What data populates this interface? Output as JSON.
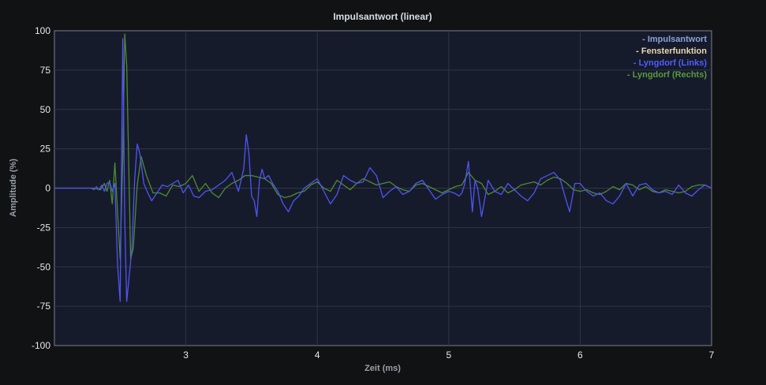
{
  "chart_data": {
    "type": "line",
    "title": "Impulsantwort (linear)",
    "xlabel": "Zeit (ms)",
    "ylabel": "Amplitude (%)",
    "xlim": [
      2.0,
      7.0
    ],
    "ylim": [
      -100,
      100
    ],
    "x_ticks": [
      3,
      4,
      5,
      6,
      7
    ],
    "x_tick_labels": [
      "3",
      "4",
      "5",
      "6",
      "7"
    ],
    "y_ticks": [
      100,
      75,
      50,
      25,
      0,
      -25,
      -50,
      -75,
      -100
    ],
    "y_tick_labels": [
      "100",
      "75",
      "50",
      "25",
      "0",
      "-25",
      "-50",
      "-75",
      "-100"
    ],
    "grid": true,
    "legend_position": "top-right",
    "legend": [
      {
        "label": "- Impulsantwort",
        "color": "#8aa2d6"
      },
      {
        "label": "- Fensterfunktion",
        "color": "#e8d7b0"
      },
      {
        "label": "- Lyngdorf (Links)",
        "color": "#4f5cff"
      },
      {
        "label": "- Lyngdorf (Rechts)",
        "color": "#5a9a3c"
      }
    ],
    "series": [
      {
        "name": "Lyngdorf (Links)",
        "color": "#4f55f0",
        "x": [
          2.0,
          2.2,
          2.25,
          2.28,
          2.3,
          2.32,
          2.34,
          2.36,
          2.38,
          2.4,
          2.42,
          2.44,
          2.46,
          2.48,
          2.5,
          2.52,
          2.535,
          2.55,
          2.57,
          2.59,
          2.61,
          2.63,
          2.65,
          2.68,
          2.71,
          2.74,
          2.78,
          2.82,
          2.86,
          2.9,
          2.94,
          2.98,
          3.02,
          3.06,
          3.1,
          3.15,
          3.2,
          3.25,
          3.3,
          3.35,
          3.4,
          3.44,
          3.46,
          3.48,
          3.5,
          3.52,
          3.54,
          3.56,
          3.58,
          3.6,
          3.63,
          3.66,
          3.7,
          3.74,
          3.78,
          3.82,
          3.86,
          3.9,
          3.95,
          4.0,
          4.05,
          4.1,
          4.15,
          4.2,
          4.25,
          4.3,
          4.35,
          4.4,
          4.45,
          4.5,
          4.55,
          4.6,
          4.65,
          4.7,
          4.75,
          4.8,
          4.85,
          4.9,
          4.95,
          5.0,
          5.04,
          5.08,
          5.1,
          5.12,
          5.15,
          5.18,
          5.2,
          5.22,
          5.25,
          5.3,
          5.35,
          5.4,
          5.45,
          5.5,
          5.55,
          5.6,
          5.65,
          5.7,
          5.75,
          5.8,
          5.85,
          5.88,
          5.92,
          5.96,
          6.0,
          6.05,
          6.1,
          6.15,
          6.2,
          6.25,
          6.3,
          6.35,
          6.4,
          6.45,
          6.5,
          6.55,
          6.6,
          6.65,
          6.7,
          6.75,
          6.8,
          6.85,
          6.9,
          6.95,
          7.0
        ],
        "values": [
          0,
          0,
          0,
          0,
          -1,
          1,
          -1,
          2,
          -2,
          3,
          4,
          -2,
          3,
          -48,
          -72,
          95,
          -20,
          -72,
          -55,
          -38,
          5,
          28,
          22,
          3,
          -3,
          -8,
          -3,
          2,
          1,
          3,
          5,
          -3,
          2,
          -5,
          -6,
          -2,
          -1,
          2,
          5,
          10,
          -2,
          12,
          34,
          22,
          -5,
          -8,
          -18,
          5,
          12,
          6,
          8,
          3,
          -2,
          -10,
          -15,
          -8,
          -5,
          0,
          3,
          6,
          -2,
          -10,
          -4,
          8,
          5,
          3,
          4,
          13,
          8,
          -6,
          -2,
          1,
          -4,
          -2,
          3,
          5,
          -1,
          -7,
          -4,
          -2,
          -3,
          -5,
          -3,
          2,
          17,
          -15,
          5,
          0,
          -18,
          5,
          -2,
          -4,
          3,
          -1,
          -5,
          -8,
          -3,
          6,
          8,
          10,
          5,
          -4,
          -15,
          3,
          3,
          -2,
          -5,
          -3,
          -8,
          -10,
          -5,
          3,
          -5,
          2,
          3,
          -1,
          -3,
          -2,
          -4,
          2,
          -3,
          -5,
          -1,
          2,
          0
        ]
      },
      {
        "name": "Lyngdorf (Rechts)",
        "color": "#4e8a33",
        "x": [
          2.0,
          2.2,
          2.3,
          2.35,
          2.38,
          2.4,
          2.42,
          2.44,
          2.46,
          2.48,
          2.5,
          2.52,
          2.535,
          2.55,
          2.58,
          2.6,
          2.63,
          2.66,
          2.7,
          2.75,
          2.8,
          2.85,
          2.9,
          2.95,
          3.0,
          3.05,
          3.1,
          3.15,
          3.2,
          3.25,
          3.3,
          3.35,
          3.4,
          3.45,
          3.5,
          3.55,
          3.6,
          3.65,
          3.7,
          3.75,
          3.8,
          3.85,
          3.9,
          3.95,
          4.0,
          4.05,
          4.1,
          4.15,
          4.2,
          4.25,
          4.3,
          4.35,
          4.4,
          4.45,
          4.5,
          4.55,
          4.6,
          4.65,
          4.7,
          4.75,
          4.8,
          4.85,
          4.9,
          4.95,
          5.0,
          5.05,
          5.1,
          5.15,
          5.2,
          5.25,
          5.3,
          5.35,
          5.4,
          5.45,
          5.5,
          5.55,
          5.6,
          5.65,
          5.7,
          5.75,
          5.8,
          5.85,
          5.9,
          5.95,
          6.0,
          6.05,
          6.1,
          6.15,
          6.2,
          6.25,
          6.3,
          6.35,
          6.4,
          6.45,
          6.5,
          6.55,
          6.6,
          6.65,
          6.7,
          6.75,
          6.8,
          6.85,
          6.9,
          6.95,
          7.0
        ],
        "values": [
          0,
          0,
          0,
          -1,
          3,
          -2,
          5,
          -10,
          16,
          -15,
          -45,
          20,
          98,
          78,
          -45,
          -38,
          2,
          20,
          8,
          -3,
          -3,
          -5,
          2,
          1,
          3,
          8,
          -2,
          3,
          -3,
          -6,
          0,
          3,
          5,
          8,
          8,
          7,
          6,
          3,
          -4,
          -6,
          -5,
          -3,
          -2,
          2,
          4,
          0,
          -2,
          5,
          2,
          -1,
          3,
          6,
          4,
          2,
          3,
          4,
          1,
          -1,
          -2,
          2,
          3,
          1,
          -1,
          -3,
          -1,
          1,
          2,
          10,
          5,
          3,
          -4,
          -2,
          1,
          -3,
          -1,
          2,
          3,
          4,
          2,
          5,
          7,
          6,
          3,
          -1,
          -2,
          -1,
          -3,
          -4,
          -2,
          1,
          -1,
          3,
          2,
          -1,
          1,
          -2,
          -3,
          -1,
          -2,
          -3,
          -2,
          1,
          2,
          2,
          0
        ]
      }
    ]
  }
}
